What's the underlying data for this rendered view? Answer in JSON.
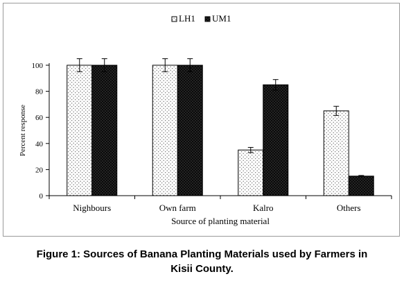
{
  "chart_data": {
    "type": "bar",
    "categories": [
      "Nighbours",
      "Own farm",
      "Kalro",
      "Others"
    ],
    "series": [
      {
        "name": "LH1",
        "pattern": "light-dotted",
        "values": [
          100,
          100,
          35,
          65
        ],
        "error": [
          5,
          5,
          2,
          3.5
        ]
      },
      {
        "name": "UM1",
        "pattern": "dark-dotted",
        "values": [
          100,
          100,
          85,
          15
        ],
        "error": [
          5,
          5,
          4,
          0.5
        ]
      }
    ],
    "xlabel": "Source of planting  material",
    "ylabel": "Percent response",
    "ylim": [
      0,
      100
    ],
    "yticks": [
      0,
      20,
      40,
      60,
      80,
      100
    ],
    "grid": false,
    "legend_position": "top-center"
  },
  "caption": {
    "line1": "Figure 1: Sources of Banana Planting Materials used by Farmers in",
    "line2": "Kisii County."
  }
}
